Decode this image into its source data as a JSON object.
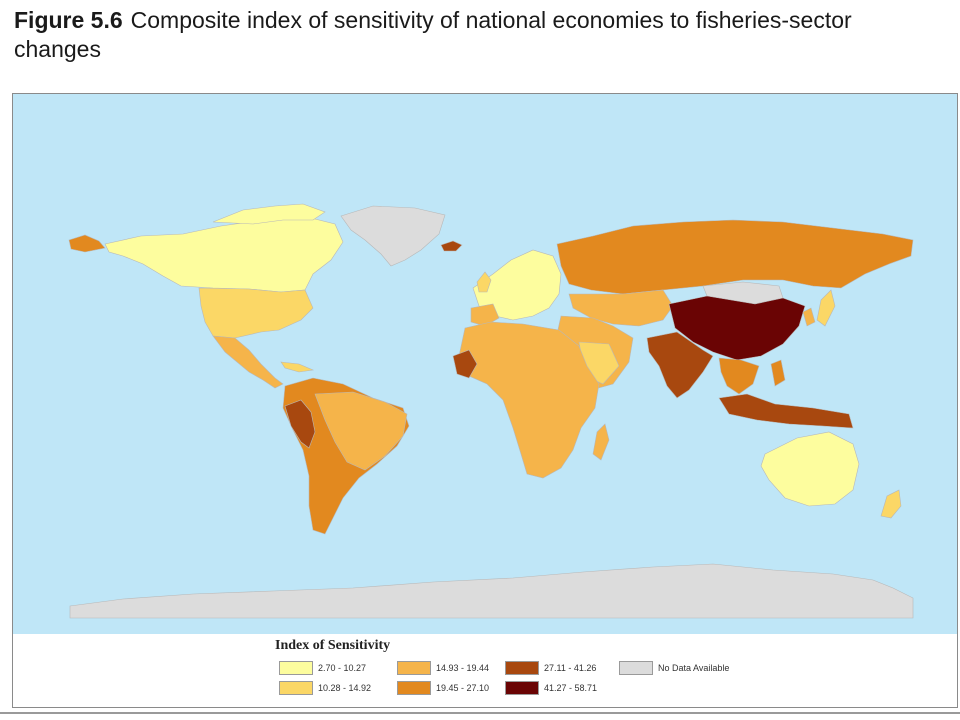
{
  "figure": {
    "label": "Figure 5.6",
    "title": "Composite index of sensitivity of national economies to fisheries-sector changes"
  },
  "legend": {
    "title": "Index of Sensitivity",
    "classes": [
      {
        "range": "2.70 - 10.27",
        "color": "#fdfd9e"
      },
      {
        "range": "10.28 - 14.92",
        "color": "#fbd766"
      },
      {
        "range": "14.93 - 19.44",
        "color": "#f5b44a"
      },
      {
        "range": "19.45 - 27.10",
        "color": "#e2891f"
      },
      {
        "range": "27.11 - 41.26",
        "color": "#a8480f"
      },
      {
        "range": "41.27 - 58.71",
        "color": "#6a0404"
      },
      {
        "range": "No Data Available",
        "color": "#dcdcdc"
      }
    ]
  },
  "map_colors": {
    "ocean": "#bfe6f7",
    "border": "#b8b8b8"
  }
}
